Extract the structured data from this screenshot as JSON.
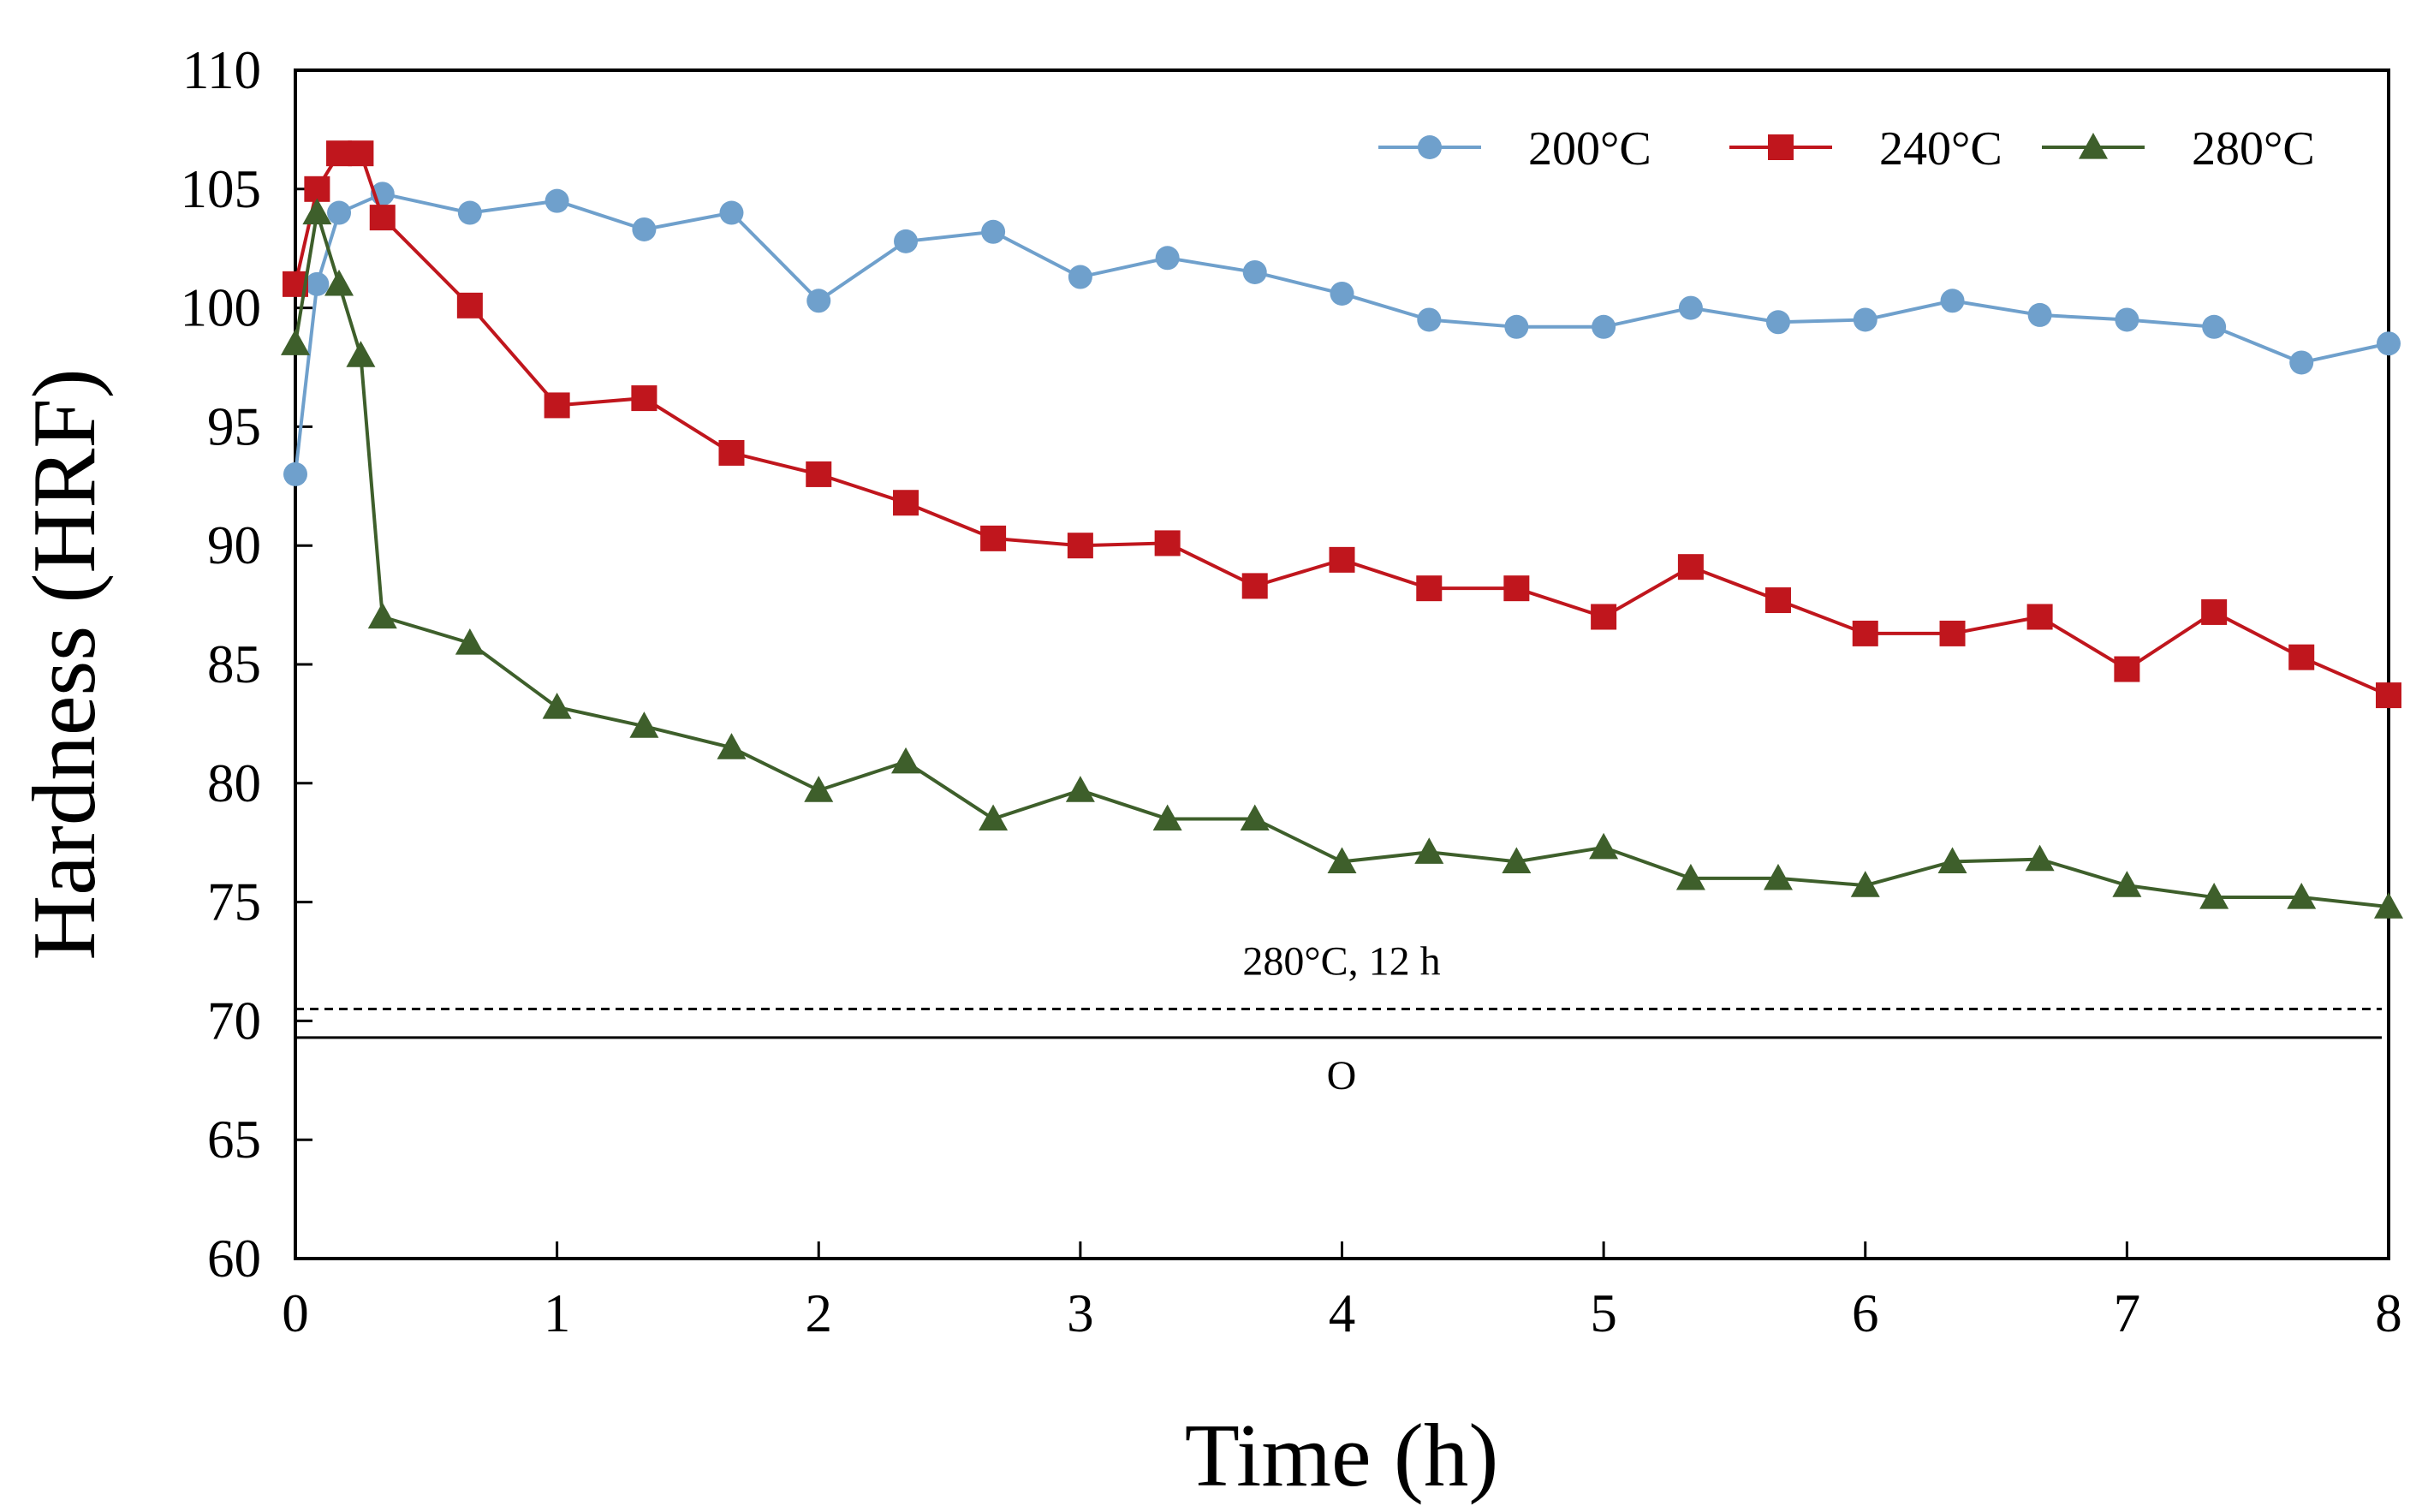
{
  "chart_data": {
    "type": "line",
    "title": "",
    "xlabel": "Time (h)",
    "ylabel": "Hardness (HRF)",
    "xlim": [
      0,
      8
    ],
    "ylim": [
      60,
      110
    ],
    "xticks": [
      "0",
      "1",
      "2",
      "3",
      "4",
      "5",
      "6",
      "7",
      "8"
    ],
    "yticks": [
      "60",
      "65",
      "70",
      "75",
      "80",
      "85",
      "90",
      "95",
      "100",
      "105",
      "110"
    ],
    "grid": false,
    "legend_position": "top-right",
    "series": [
      {
        "name": "200°C",
        "color": "#6fa0cc",
        "marker": "circle",
        "x": [
          0,
          0.083,
          0.167,
          0.333,
          0.667,
          1,
          1.333,
          1.667,
          2,
          2.333,
          2.667,
          3,
          3.333,
          3.667,
          4,
          4.333,
          4.667,
          5,
          5.333,
          5.667,
          6,
          6.333,
          6.667,
          7,
          7.333,
          7.667,
          8
        ],
        "values": [
          93,
          101,
          104,
          104.8,
          104,
          104.5,
          103.3,
          104,
          100.3,
          102.8,
          103.2,
          101.3,
          102.1,
          101.5,
          100.6,
          99.5,
          99.2,
          99.2,
          100,
          99.4,
          99.5,
          100.3,
          99.7,
          99.5,
          99.2,
          97.7,
          98.5
        ]
      },
      {
        "name": "240°C",
        "color": "#c0161d",
        "marker": "square",
        "x": [
          0,
          0.083,
          0.167,
          0.25,
          0.333,
          0.667,
          1,
          1.333,
          1.667,
          2,
          2.333,
          2.667,
          3,
          3.333,
          3.667,
          4,
          4.333,
          4.667,
          5,
          5.333,
          5.667,
          6,
          6.333,
          6.667,
          7,
          7.333,
          7.667,
          8
        ],
        "values": [
          101,
          105,
          106.5,
          106.5,
          103.8,
          100.1,
          95.9,
          96.2,
          93.9,
          93,
          91.8,
          90.3,
          90,
          90.1,
          88.3,
          89.4,
          88.2,
          88.2,
          87,
          89.1,
          87.7,
          86.3,
          86.3,
          87,
          84.8,
          87.2,
          85.3,
          83.7
        ]
      },
      {
        "name": "280°C",
        "color": "#3e5f2b",
        "marker": "triangle",
        "x": [
          0,
          0.083,
          0.167,
          0.25,
          0.333,
          0.667,
          1,
          1.333,
          1.667,
          2,
          2.333,
          2.667,
          3,
          3.333,
          3.667,
          4,
          4.333,
          4.667,
          5,
          5.333,
          5.667,
          6,
          6.333,
          6.667,
          7,
          7.333,
          7.667,
          8
        ],
        "values": [
          98.5,
          104,
          101,
          98,
          87,
          85.9,
          83.2,
          82.4,
          81.5,
          79.7,
          80.9,
          78.5,
          79.7,
          78.5,
          78.5,
          76.7,
          77.1,
          76.7,
          77.3,
          76,
          76,
          75.7,
          76.7,
          76.8,
          75.7,
          75.2,
          75.2,
          74.8
        ]
      }
    ],
    "reference_lines": [
      {
        "label": "280°C, 12 h",
        "y": 70.5,
        "style": "dashed"
      },
      {
        "label": "O",
        "y": 69.3,
        "style": "solid"
      }
    ]
  }
}
